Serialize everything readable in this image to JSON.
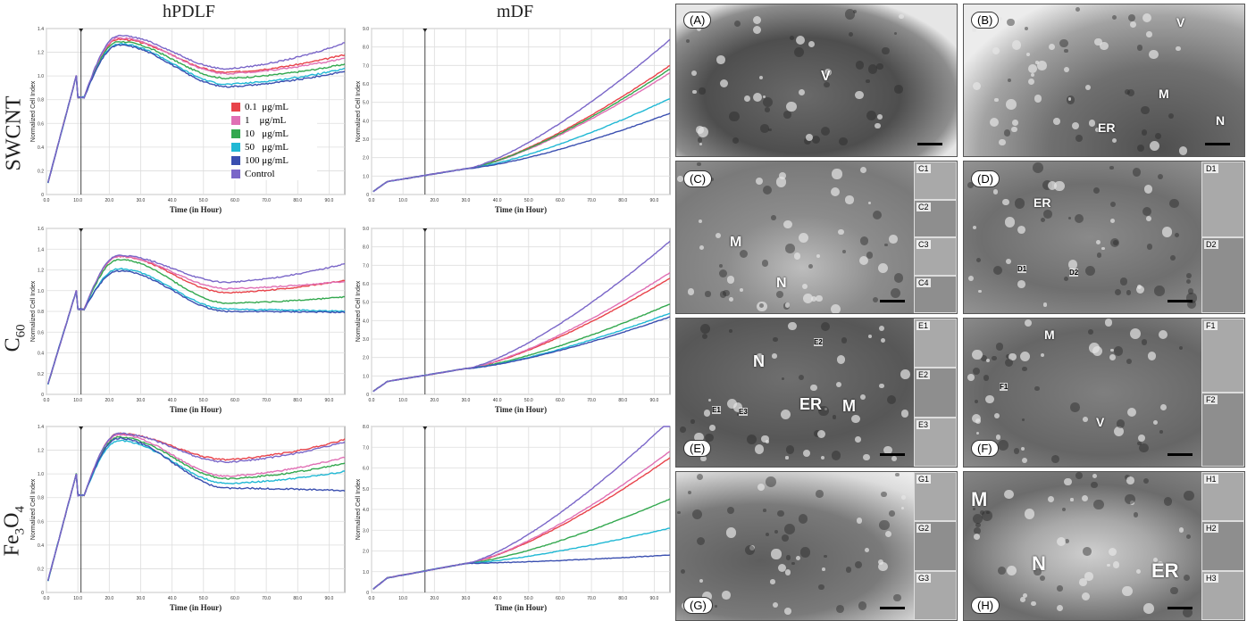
{
  "columns": [
    "hPDLF",
    "mDF"
  ],
  "rows": [
    {
      "main": "SWCNT",
      "sub": ""
    },
    {
      "main": "C",
      "sub": "60"
    },
    {
      "main": "Fe",
      "sub": "3",
      "main2": "O",
      "sub2": "4"
    }
  ],
  "legend": {
    "items": [
      {
        "label": "0.1  μg/mL",
        "color": "#e8434a"
      },
      {
        "label": "1    μg/mL",
        "color": "#e06fb4"
      },
      {
        "label": "10   μg/mL",
        "color": "#33a84f"
      },
      {
        "label": "50   μg/mL",
        "color": "#20b8d4"
      },
      {
        "label": "100 μg/mL",
        "color": "#3a4fb0"
      },
      {
        "label": "Control",
        "color": "#7a66c8"
      }
    ]
  },
  "chart_data": [
    {
      "type": "line",
      "panel": "SWCNT-hPDLF",
      "xlabel": "Time (in Hour)",
      "ylabel": "Normalized Cell Index",
      "xlim": [
        0,
        95
      ],
      "ylim": [
        0,
        1.4
      ],
      "ystep": 0.2,
      "xticks": [
        "0.0",
        "10.0",
        "20.0",
        "30.0",
        "40.0",
        "50.0",
        "60.0",
        "70.0",
        "80.0",
        "90.0"
      ],
      "yticks": [
        "0",
        "0.2",
        "0.4",
        "0.6",
        "0.8",
        "1.0",
        "1.2",
        "1.4"
      ],
      "marker_x": 11,
      "series": [
        {
          "name": "0.1 μg/mL",
          "color": "#e8434a",
          "peak": 1.31,
          "trough": 1.03,
          "end": 1.18
        },
        {
          "name": "1 μg/mL",
          "color": "#e06fb4",
          "peak": 1.32,
          "trough": 1.02,
          "end": 1.15
        },
        {
          "name": "10 μg/mL",
          "color": "#33a84f",
          "peak": 1.29,
          "trough": 0.98,
          "end": 1.1
        },
        {
          "name": "50 μg/mL",
          "color": "#20b8d4",
          "peak": 1.27,
          "trough": 0.93,
          "end": 1.06
        },
        {
          "name": "100 μg/mL",
          "color": "#3a4fb0",
          "peak": 1.26,
          "trough": 0.91,
          "end": 1.04
        },
        {
          "name": "Control",
          "color": "#7a66c8",
          "peak": 1.34,
          "trough": 1.06,
          "end": 1.28
        }
      ]
    },
    {
      "type": "line",
      "panel": "SWCNT-mDF",
      "xlabel": "Time (in Hour)",
      "ylabel": "Normalized Cell Index",
      "xlim": [
        0,
        95
      ],
      "ylim": [
        0,
        9.0
      ],
      "ystep": 1.0,
      "xticks": [
        "0.0",
        "10.0",
        "20.0",
        "30.0",
        "40.0",
        "50.0",
        "60.0",
        "70.0",
        "80.0",
        "90.0"
      ],
      "yticks": [
        "0",
        "1.0",
        "2.0",
        "3.0",
        "4.0",
        "5.0",
        "6.0",
        "7.0",
        "8.0",
        "9.0"
      ],
      "marker_x": 17,
      "series": [
        {
          "name": "0.1 μg/mL",
          "color": "#e8434a",
          "end": 7.0
        },
        {
          "name": "1 μg/mL",
          "color": "#e06fb4",
          "end": 6.6
        },
        {
          "name": "10 μg/mL",
          "color": "#33a84f",
          "end": 6.8
        },
        {
          "name": "50 μg/mL",
          "color": "#20b8d4",
          "end": 5.2
        },
        {
          "name": "100 μg/mL",
          "color": "#3a4fb0",
          "end": 4.4
        },
        {
          "name": "Control",
          "color": "#7a66c8",
          "end": 8.4
        }
      ]
    },
    {
      "type": "line",
      "panel": "C60-hPDLF",
      "xlabel": "Time (in Hour)",
      "ylabel": "Normalized Cell Index",
      "xlim": [
        0,
        95
      ],
      "ylim": [
        0,
        1.6
      ],
      "ystep": 0.2,
      "xticks": [
        "0.0",
        "10.0",
        "20.0",
        "30.0",
        "40.0",
        "50.0",
        "60.0",
        "70.0",
        "80.0",
        "90.0"
      ],
      "yticks": [
        "0",
        "0.2",
        "0.4",
        "0.6",
        "0.8",
        "1.0",
        "1.2",
        "1.4",
        "1.6"
      ],
      "marker_x": 11,
      "series": [
        {
          "name": "0.1 μg/mL",
          "color": "#e8434a",
          "peak": 1.33,
          "trough": 0.98,
          "end": 1.1
        },
        {
          "name": "1 μg/mL",
          "color": "#e06fb4",
          "peak": 1.33,
          "trough": 1.02,
          "end": 1.09
        },
        {
          "name": "10 μg/mL",
          "color": "#33a84f",
          "peak": 1.3,
          "trough": 0.88,
          "end": 0.94
        },
        {
          "name": "50 μg/mL",
          "color": "#20b8d4",
          "peak": 1.21,
          "trough": 0.82,
          "end": 0.8
        },
        {
          "name": "100 μg/mL",
          "color": "#3a4fb0",
          "peak": 1.19,
          "trough": 0.8,
          "end": 0.79
        },
        {
          "name": "Control",
          "color": "#7a66c8",
          "peak": 1.34,
          "trough": 1.08,
          "end": 1.26
        }
      ]
    },
    {
      "type": "line",
      "panel": "C60-mDF",
      "xlabel": "Time (in Hour)",
      "ylabel": "Normalized Cell Index",
      "xlim": [
        0,
        95
      ],
      "ylim": [
        0,
        9.0
      ],
      "ystep": 1.0,
      "xticks": [
        "0.0",
        "10.0",
        "20.0",
        "30.0",
        "40.0",
        "50.0",
        "60.0",
        "70.0",
        "80.0",
        "90.0"
      ],
      "yticks": [
        "0",
        "1.0",
        "2.0",
        "3.0",
        "4.0",
        "5.0",
        "6.0",
        "7.0",
        "8.0",
        "9.0"
      ],
      "marker_x": 17,
      "series": [
        {
          "name": "0.1 μg/mL",
          "color": "#e8434a",
          "end": 6.3
        },
        {
          "name": "1 μg/mL",
          "color": "#e06fb4",
          "end": 6.6
        },
        {
          "name": "10 μg/mL",
          "color": "#33a84f",
          "end": 4.9
        },
        {
          "name": "50 μg/mL",
          "color": "#20b8d4",
          "end": 4.4
        },
        {
          "name": "100 μg/mL",
          "color": "#3a4fb0",
          "end": 4.2
        },
        {
          "name": "Control",
          "color": "#7a66c8",
          "end": 8.3
        }
      ]
    },
    {
      "type": "line",
      "panel": "Fe3O4-hPDLF",
      "xlabel": "Time (in Hour)",
      "ylabel": "Normalized Cell Index",
      "xlim": [
        0,
        95
      ],
      "ylim": [
        0,
        1.4
      ],
      "ystep": 0.2,
      "xticks": [
        "0.0",
        "10.0",
        "20.0",
        "30.0",
        "40.0",
        "50.0",
        "60.0",
        "70.0",
        "80.0",
        "90.0"
      ],
      "yticks": [
        "0",
        "0.2",
        "0.4",
        "0.6",
        "0.8",
        "1.0",
        "1.2",
        "1.4"
      ],
      "marker_x": 11,
      "series": [
        {
          "name": "0.1 μg/mL",
          "color": "#e8434a",
          "peak": 1.34,
          "trough": 1.12,
          "end": 1.29
        },
        {
          "name": "1 μg/mL",
          "color": "#e06fb4",
          "peak": 1.33,
          "trough": 0.98,
          "end": 1.14
        },
        {
          "name": "10 μg/mL",
          "color": "#33a84f",
          "peak": 1.31,
          "trough": 0.96,
          "end": 1.09
        },
        {
          "name": "50 μg/mL",
          "color": "#20b8d4",
          "peak": 1.28,
          "trough": 0.92,
          "end": 1.02
        },
        {
          "name": "100 μg/mL",
          "color": "#3a4fb0",
          "peak": 1.3,
          "trough": 0.88,
          "end": 0.86
        },
        {
          "name": "Control",
          "color": "#7a66c8",
          "peak": 1.34,
          "trough": 1.1,
          "end": 1.27
        }
      ]
    },
    {
      "type": "line",
      "panel": "Fe3O4-mDF",
      "xlabel": "Time (in Hour)",
      "ylabel": "Normalized Cell Index",
      "xlim": [
        0,
        95
      ],
      "ylim": [
        0,
        8.0
      ],
      "ystep": 1.0,
      "xticks": [
        "0.0",
        "10.0",
        "20.0",
        "30.0",
        "40.0",
        "50.0",
        "60.0",
        "70.0",
        "80.0",
        "90.0"
      ],
      "yticks": [
        "0",
        "1.0",
        "2.0",
        "3.0",
        "4.0",
        "5.0",
        "6.0",
        "7.0",
        "8.0"
      ],
      "marker_x": 17,
      "series": [
        {
          "name": "0.1 μg/mL",
          "color": "#e8434a",
          "end": 6.5
        },
        {
          "name": "1 μg/mL",
          "color": "#e06fb4",
          "end": 6.8
        },
        {
          "name": "10 μg/mL",
          "color": "#33a84f",
          "end": 4.5
        },
        {
          "name": "50 μg/mL",
          "color": "#20b8d4",
          "end": 3.1
        },
        {
          "name": "100 μg/mL",
          "color": "#3a4fb0",
          "end": 1.8
        },
        {
          "name": "Control",
          "color": "#7a66c8",
          "end": 8.3
        }
      ]
    }
  ],
  "em_panels": [
    {
      "label": "(A)",
      "marks": [
        "V"
      ],
      "insets": []
    },
    {
      "label": "(B)",
      "marks": [
        "V",
        "M",
        "ER",
        "N"
      ],
      "insets": []
    },
    {
      "label": "(C)",
      "marks": [
        "M",
        "N"
      ],
      "insets": [
        "C1",
        "C2",
        "C3",
        "C4"
      ]
    },
    {
      "label": "(D)",
      "marks": [
        "ER",
        "D1",
        "D2"
      ],
      "insets": [
        "D1",
        "D2"
      ]
    },
    {
      "label": "(E)",
      "marks": [
        "N",
        "ER",
        "M",
        "E1",
        "E2",
        "E3"
      ],
      "insets": [
        "E1",
        "E2",
        "E3"
      ]
    },
    {
      "label": "(F)",
      "marks": [
        "M",
        "V",
        "F1"
      ],
      "insets": [
        "F1",
        "F2"
      ]
    },
    {
      "label": "(G)",
      "marks": [],
      "insets": [
        "G1",
        "G2",
        "G3"
      ]
    },
    {
      "label": "(H)",
      "marks": [
        "M",
        "N",
        "ER"
      ],
      "insets": [
        "H1",
        "H2",
        "H3"
      ]
    }
  ]
}
